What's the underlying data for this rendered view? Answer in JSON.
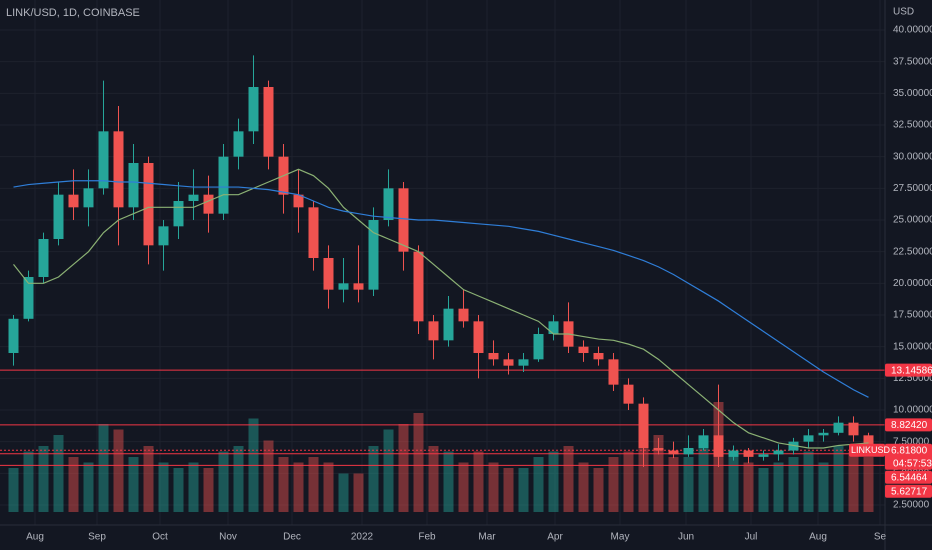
{
  "chart_data": {
    "type": "candlestick",
    "title": "LINK/USD, 1D, COINBASE",
    "currency": "USD",
    "x_labels": [
      "Aug",
      "Sep",
      "Oct",
      "Nov",
      "Dec",
      "2022",
      "Feb",
      "Mar",
      "Apr",
      "May",
      "Jun",
      "Jul",
      "Aug",
      "Se"
    ],
    "open": [
      14.5,
      17.2,
      20.5,
      23.5,
      27,
      26,
      27.5,
      32,
      26,
      29.5,
      23,
      24.5,
      26.5,
      27,
      25.5,
      30,
      32,
      35.5,
      30,
      27,
      26,
      22,
      19.5,
      20,
      19.5,
      25,
      27.5,
      22.5,
      17,
      15.5,
      18,
      17,
      14.5,
      14,
      13.5,
      14,
      16,
      17,
      15,
      14.5,
      14,
      12,
      10.5,
      7,
      6.8,
      6.5,
      7,
      8,
      6.3,
      6.8,
      6.3,
      6.5,
      6.8,
      7.5,
      8,
      8.2,
      9,
      8
    ],
    "high": [
      17.5,
      21,
      24,
      28,
      29,
      29,
      36,
      34,
      31,
      30,
      25,
      28,
      29,
      28.5,
      31,
      33,
      38,
      36,
      31,
      29,
      26.5,
      23,
      22,
      23,
      26,
      29,
      28,
      23,
      17.5,
      19,
      19.5,
      17.5,
      15.5,
      14.5,
      14.5,
      16.5,
      17.5,
      18.5,
      15.5,
      15,
      14.5,
      12.5,
      11,
      7.8,
      7.5,
      8,
      8.5,
      12,
      7.2,
      7,
      6.8,
      7.3,
      7.8,
      8.5,
      8.5,
      9.5,
      9.5,
      8.2
    ],
    "low": [
      13.5,
      17,
      20,
      23,
      25,
      24.5,
      27,
      23,
      25,
      21.5,
      21,
      23.5,
      25,
      24,
      25,
      29,
      31,
      29,
      25.5,
      24,
      21,
      18,
      18.5,
      18.5,
      19,
      24.5,
      21,
      16,
      14,
      15,
      16.5,
      12.5,
      13.5,
      12.8,
      13,
      13.8,
      15.5,
      14.5,
      13.8,
      13.5,
      11.5,
      10,
      5.5,
      6.5,
      6.2,
      6.3,
      6.8,
      5.5,
      6,
      5.8,
      6,
      6,
      6.5,
      7,
      7.5,
      8,
      7.5,
      6.5
    ],
    "close": [
      17.2,
      20.5,
      23.5,
      27,
      26,
      27.5,
      32,
      26,
      29.5,
      23,
      24.5,
      26.5,
      27,
      25.5,
      30,
      32,
      35.5,
      30,
      27,
      26,
      22,
      19.5,
      20,
      19.5,
      25,
      27.5,
      22.5,
      17,
      15.5,
      18,
      17,
      14.5,
      14,
      13.5,
      14,
      16,
      17,
      15,
      14.5,
      14,
      12,
      10.5,
      7,
      6.8,
      6.5,
      7,
      8,
      6.3,
      6.8,
      6.3,
      6.5,
      6.8,
      7.5,
      8,
      8.2,
      9,
      8,
      6.818
    ],
    "volume": [
      40,
      55,
      60,
      70,
      50,
      45,
      80,
      75,
      50,
      60,
      45,
      40,
      45,
      40,
      55,
      60,
      85,
      65,
      50,
      45,
      50,
      45,
      35,
      35,
      60,
      75,
      80,
      90,
      60,
      55,
      45,
      55,
      45,
      40,
      40,
      50,
      55,
      60,
      45,
      40,
      50,
      55,
      95,
      70,
      50,
      50,
      60,
      100,
      55,
      45,
      40,
      45,
      50,
      55,
      45,
      60,
      55,
      50
    ],
    "up_color": "#26a69a",
    "down_color": "#ef5350",
    "moving_averages": [
      {
        "color": "#8bb174",
        "values": [
          21.5,
          20,
          20,
          20.5,
          21.5,
          22.5,
          24,
          25,
          25.5,
          26,
          26,
          26,
          26,
          26.5,
          27,
          27,
          27.5,
          28,
          28.5,
          29,
          28.5,
          27.5,
          26,
          25,
          24,
          23.5,
          23,
          22.5,
          21.5,
          20.5,
          19.5,
          19,
          18.5,
          18,
          17.5,
          17,
          16,
          16,
          15.8,
          15.6,
          15.5,
          15.2,
          14.8,
          14,
          13,
          12,
          11,
          10,
          9,
          8.2,
          7.8,
          7.4,
          7.2,
          7,
          7,
          7.2,
          7.3,
          7.4
        ]
      },
      {
        "color": "#2f7ed8",
        "values": [
          27.6,
          27.8,
          27.9,
          28,
          28.1,
          28.1,
          28.1,
          28,
          28,
          27.9,
          27.8,
          27.7,
          27.6,
          27.6,
          27.6,
          27.6,
          27.5,
          27.4,
          27.2,
          27,
          26.5,
          26,
          25.7,
          25.5,
          25.3,
          25.2,
          25.1,
          25,
          25,
          24.9,
          24.8,
          24.7,
          24.6,
          24.5,
          24.3,
          24.1,
          23.8,
          23.5,
          23.2,
          22.9,
          22.6,
          22.2,
          21.8,
          21.3,
          20.7,
          20,
          19.3,
          18.6,
          17.8,
          17,
          16.2,
          15.4,
          14.6,
          13.8,
          13,
          12.3,
          11.6,
          11
        ]
      }
    ],
    "ylim": [
      2.5,
      40
    ],
    "yticks": [
      {
        "value": 40,
        "label": "40.00000"
      },
      {
        "value": 37.5,
        "label": "37.50000"
      },
      {
        "value": 35,
        "label": "35.00000"
      },
      {
        "value": 32.5,
        "label": "32.50000"
      },
      {
        "value": 30,
        "label": "30.00000"
      },
      {
        "value": 27.5,
        "label": "27.50000"
      },
      {
        "value": 25,
        "label": "25.00000"
      },
      {
        "value": 22.5,
        "label": "22.50000"
      },
      {
        "value": 20,
        "label": "20.00000"
      },
      {
        "value": 17.5,
        "label": "17.50000"
      },
      {
        "value": 15,
        "label": "15.00000"
      },
      {
        "value": 12.5,
        "label": "12.50000"
      },
      {
        "value": 10,
        "label": "10.00000"
      },
      {
        "value": 7.5,
        "label": "7.50000"
      },
      {
        "value": 5,
        "label": "5.00000"
      },
      {
        "value": 2.5,
        "label": "2.50000"
      }
    ],
    "grid": true,
    "levels": [
      {
        "value": 13.14586,
        "label": "13.14586"
      },
      {
        "value": 8.8242,
        "label": "8.82420"
      },
      {
        "value": 6.54464,
        "label": "6.54464"
      },
      {
        "value": 5.62717,
        "label": "5.62717"
      }
    ],
    "level_color": "#f23645",
    "symbol_tag": "LINKUSD",
    "last_price": {
      "value": 6.818,
      "label": "6.81800"
    },
    "countdown": "04:57:53"
  }
}
